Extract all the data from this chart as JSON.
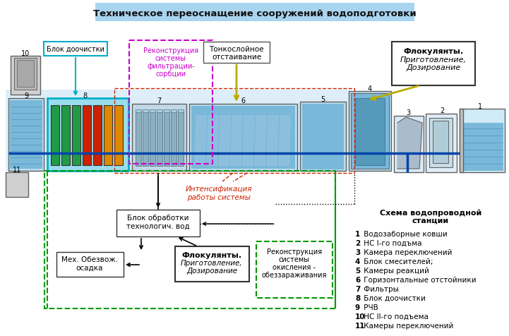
{
  "title": "Техническое переоснащение сооружений водоподготовки",
  "title_bg": "#a8d4f0",
  "bg_color": "#ffffff",
  "legend_title_line1": "Схема водопроводной",
  "legend_title_line2": "станции",
  "legend_items": [
    [
      "1",
      " Водозаборные ковши"
    ],
    [
      "2",
      " НС I-го подъма"
    ],
    [
      "3",
      " Камера переключений"
    ],
    [
      "4",
      " Блок смесителей;"
    ],
    [
      "5",
      " Камеры реакций"
    ],
    [
      "6",
      " Горизонтальные отстойники"
    ],
    [
      "7",
      " Фильтры"
    ],
    [
      "8",
      " Блок доочистки"
    ],
    [
      "9",
      " РЧВ"
    ],
    [
      "10",
      " НС II-го подъема"
    ],
    [
      "11",
      " Камеры переключений"
    ]
  ],
  "label_blok_doochistki": "Блок доочистки",
  "label_rekonstrukcia": [
    "Реконструкция",
    "системы",
    "фильтрации-",
    "сорбции"
  ],
  "label_tonkosloynoe": [
    "Тонкослойное",
    "отстаивание"
  ],
  "label_flok_top_bold": "Флокулянты.",
  "label_flok_top_italic": [
    "Приготовление,",
    "Дозирование"
  ],
  "label_intensif": [
    "Интенсификация",
    "работы системы"
  ],
  "label_blok_obrabotki": [
    "Блок обработки",
    "технологич. вод"
  ],
  "label_mekh_line1": "Мех. Обезвож.",
  "label_mekh_line2": "осадка",
  "label_flok_bot_bold": "Флокулянты.",
  "label_flok_bot_italic": [
    "Приготовление,",
    "Дозирование"
  ],
  "label_rekonstrukcia2": [
    "Реконструкция",
    "системы",
    "окисления -",
    "обеззараживания"
  ],
  "colors": {
    "water_blue": "#7ab8d9",
    "light_blue": "#b8ddf0",
    "pale_blue": "#d0eaf8",
    "cyan_border": "#00b0c8",
    "magenta": "#cc00cc",
    "dark_red": "#cc2200",
    "dark_green": "#009900",
    "green_filter": "#228833",
    "red_filter": "#cc2200",
    "orange_filter": "#dd8800",
    "pipe_blue": "#0044aa",
    "gold": "#ccaa00",
    "gray_struct": "#c0c0c0",
    "dark_gray": "#606060",
    "struct_fill": "#a0c8e0"
  }
}
